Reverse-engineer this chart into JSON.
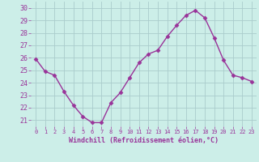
{
  "hours": [
    0,
    1,
    2,
    3,
    4,
    5,
    6,
    7,
    8,
    9,
    10,
    11,
    12,
    13,
    14,
    15,
    16,
    17,
    18,
    19,
    20,
    21,
    22,
    23
  ],
  "values": [
    25.9,
    24.9,
    24.6,
    23.3,
    22.2,
    21.3,
    20.8,
    20.8,
    22.4,
    23.2,
    24.4,
    25.6,
    26.3,
    26.6,
    27.7,
    28.6,
    29.4,
    29.8,
    29.2,
    27.6,
    25.8,
    24.6,
    24.4,
    24.1
  ],
  "line_color": "#993399",
  "marker": "D",
  "marker_size": 2.5,
  "bg_color": "#cceee8",
  "grid_color": "#aacccc",
  "xlabel": "Windchill (Refroidissement éolien,°C)",
  "xlabel_color": "#993399",
  "tick_color": "#993399",
  "ylim": [
    20.5,
    30.5
  ],
  "xlim": [
    -0.5,
    23.5
  ],
  "yticks": [
    21,
    22,
    23,
    24,
    25,
    26,
    27,
    28,
    29,
    30
  ],
  "xticks": [
    0,
    1,
    2,
    3,
    4,
    5,
    6,
    7,
    8,
    9,
    10,
    11,
    12,
    13,
    14,
    15,
    16,
    17,
    18,
    19,
    20,
    21,
    22,
    23
  ]
}
